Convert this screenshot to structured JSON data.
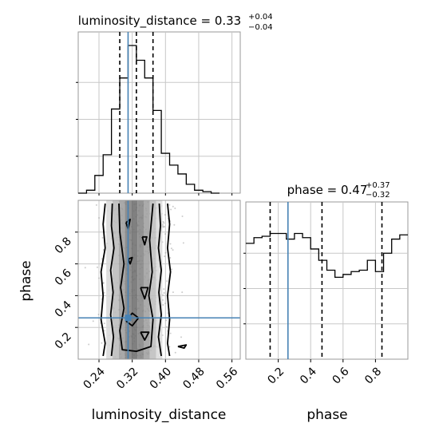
{
  "chart_data": {
    "type": "corner",
    "parameters": [
      "luminosity_distance",
      "phase"
    ],
    "truth": {
      "luminosity_distance": 0.31,
      "phase": 0.26
    },
    "line_color": "#000000",
    "truth_color": "#4682b4",
    "grid": true,
    "panels": [
      {
        "id": "hist-luminosity-distance",
        "type": "histogram",
        "title": {
          "label": "luminosity_distance",
          "value": "0.33",
          "plus": "+0.04",
          "minus": "−0.04"
        },
        "xlim": [
          0.19,
          0.58
        ],
        "quantiles": [
          0.29,
          0.33,
          0.37
        ],
        "bins": [
          {
            "x0": 0.19,
            "x1": 0.21,
            "h": 0.0
          },
          {
            "x0": 0.21,
            "x1": 0.23,
            "h": 0.02
          },
          {
            "x0": 0.23,
            "x1": 0.25,
            "h": 0.12
          },
          {
            "x0": 0.25,
            "x1": 0.27,
            "h": 0.26
          },
          {
            "x0": 0.27,
            "x1": 0.29,
            "h": 0.57
          },
          {
            "x0": 0.29,
            "x1": 0.31,
            "h": 0.78
          },
          {
            "x0": 0.31,
            "x1": 0.33,
            "h": 1.0
          },
          {
            "x0": 0.33,
            "x1": 0.35,
            "h": 0.9
          },
          {
            "x0": 0.35,
            "x1": 0.37,
            "h": 0.78
          },
          {
            "x0": 0.37,
            "x1": 0.39,
            "h": 0.56
          },
          {
            "x0": 0.39,
            "x1": 0.41,
            "h": 0.27
          },
          {
            "x0": 0.41,
            "x1": 0.43,
            "h": 0.19
          },
          {
            "x0": 0.43,
            "x1": 0.45,
            "h": 0.13
          },
          {
            "x0": 0.45,
            "x1": 0.47,
            "h": 0.06
          },
          {
            "x0": 0.47,
            "x1": 0.49,
            "h": 0.02
          },
          {
            "x0": 0.49,
            "x1": 0.51,
            "h": 0.01
          },
          {
            "x0": 0.51,
            "x1": 0.53,
            "h": 0.0
          }
        ]
      },
      {
        "id": "hist-phase",
        "type": "histogram",
        "title": {
          "label": "phase",
          "value": "0.47",
          "plus": "+0.37",
          "minus": "−0.32"
        },
        "xlim": [
          0.0,
          1.0
        ],
        "quantiles": [
          0.15,
          0.47,
          0.84
        ],
        "bins": [
          {
            "x0": 0.0,
            "x1": 0.05,
            "h": 0.82
          },
          {
            "x0": 0.05,
            "x1": 0.1,
            "h": 0.86
          },
          {
            "x0": 0.1,
            "x1": 0.15,
            "h": 0.87
          },
          {
            "x0": 0.15,
            "x1": 0.2,
            "h": 0.89
          },
          {
            "x0": 0.2,
            "x1": 0.25,
            "h": 0.89
          },
          {
            "x0": 0.25,
            "x1": 0.3,
            "h": 0.85
          },
          {
            "x0": 0.3,
            "x1": 0.35,
            "h": 0.89
          },
          {
            "x0": 0.35,
            "x1": 0.4,
            "h": 0.86
          },
          {
            "x0": 0.4,
            "x1": 0.45,
            "h": 0.78
          },
          {
            "x0": 0.45,
            "x1": 0.5,
            "h": 0.7
          },
          {
            "x0": 0.5,
            "x1": 0.55,
            "h": 0.63
          },
          {
            "x0": 0.55,
            "x1": 0.6,
            "h": 0.58
          },
          {
            "x0": 0.6,
            "x1": 0.65,
            "h": 0.6
          },
          {
            "x0": 0.65,
            "x1": 0.7,
            "h": 0.62
          },
          {
            "x0": 0.7,
            "x1": 0.75,
            "h": 0.63
          },
          {
            "x0": 0.75,
            "x1": 0.8,
            "h": 0.7
          },
          {
            "x0": 0.8,
            "x1": 0.85,
            "h": 0.62
          },
          {
            "x0": 0.85,
            "x1": 0.9,
            "h": 0.75
          },
          {
            "x0": 0.9,
            "x1": 0.95,
            "h": 0.85
          },
          {
            "x0": 0.95,
            "x1": 1.0,
            "h": 0.88
          }
        ]
      },
      {
        "id": "joint-luminosity-distance-phase",
        "type": "2d-density",
        "xlim": [
          0.19,
          0.58
        ],
        "ylim": [
          0.0,
          1.0
        ],
        "xlabel": "luminosity_distance",
        "ylabel": "phase",
        "xticks": [
          "0.24",
          "0.32",
          "0.40",
          "0.48",
          "0.56"
        ],
        "yticks": [
          "0.2",
          "0.4",
          "0.6",
          "0.8"
        ],
        "density_columns": [
          {
            "x": 0.265,
            "shade": "#d8d8d8"
          },
          {
            "x": 0.28,
            "shade": "#b8b8b8"
          },
          {
            "x": 0.295,
            "shade": "#9a9a9a"
          },
          {
            "x": 0.31,
            "shade": "#7a7a7a"
          },
          {
            "x": 0.325,
            "shade": "#6a6a6a"
          },
          {
            "x": 0.34,
            "shade": "#808080"
          },
          {
            "x": 0.355,
            "shade": "#9c9c9c"
          },
          {
            "x": 0.37,
            "shade": "#bcbcbc"
          },
          {
            "x": 0.385,
            "shade": "#d9d9d9"
          }
        ],
        "contours": [
          [
            [
              0.255,
              0.98
            ],
            [
              0.25,
              0.85
            ],
            [
              0.255,
              0.7
            ],
            [
              0.245,
              0.55
            ],
            [
              0.25,
              0.4
            ],
            [
              0.245,
              0.25
            ],
            [
              0.255,
              0.1
            ],
            [
              0.25,
              0.02
            ]
          ],
          [
            [
              0.405,
              0.98
            ],
            [
              0.41,
              0.85
            ],
            [
              0.405,
              0.7
            ],
            [
              0.412,
              0.55
            ],
            [
              0.405,
              0.4
            ],
            [
              0.41,
              0.25
            ],
            [
              0.405,
              0.1
            ],
            [
              0.41,
              0.02
            ]
          ],
          [
            [
              0.272,
              0.98
            ],
            [
              0.27,
              0.84
            ],
            [
              0.276,
              0.7
            ],
            [
              0.268,
              0.56
            ],
            [
              0.274,
              0.42
            ],
            [
              0.268,
              0.28
            ],
            [
              0.275,
              0.14
            ],
            [
              0.27,
              0.02
            ]
          ],
          [
            [
              0.385,
              0.98
            ],
            [
              0.388,
              0.84
            ],
            [
              0.383,
              0.7
            ],
            [
              0.39,
              0.56
            ],
            [
              0.384,
              0.42
            ],
            [
              0.39,
              0.28
            ],
            [
              0.383,
              0.14
            ],
            [
              0.39,
              0.02
            ]
          ],
          [
            [
              0.288,
              0.98
            ],
            [
              0.29,
              0.8
            ],
            [
              0.3,
              0.6
            ],
            [
              0.292,
              0.45
            ],
            [
              0.3,
              0.32
            ],
            [
              0.29,
              0.18
            ],
            [
              0.296,
              0.06
            ],
            [
              0.33,
              0.05
            ],
            [
              0.365,
              0.08
            ],
            [
              0.37,
              0.25
            ],
            [
              0.36,
              0.4
            ],
            [
              0.368,
              0.55
            ],
            [
              0.362,
              0.75
            ],
            [
              0.37,
              0.98
            ]
          ],
          [
            [
              0.305,
              0.86
            ],
            [
              0.31,
              0.82
            ],
            [
              0.315,
              0.88
            ],
            [
              0.305,
              0.86
            ]
          ],
          [
            [
              0.344,
              0.77
            ],
            [
              0.35,
              0.72
            ],
            [
              0.355,
              0.77
            ],
            [
              0.344,
              0.77
            ]
          ],
          [
            [
              0.31,
              0.63
            ],
            [
              0.315,
              0.6
            ],
            [
              0.32,
              0.64
            ],
            [
              0.31,
              0.63
            ]
          ],
          [
            [
              0.34,
              0.45
            ],
            [
              0.35,
              0.38
            ],
            [
              0.358,
              0.45
            ],
            [
              0.34,
              0.45
            ]
          ],
          [
            [
              0.305,
              0.24
            ],
            [
              0.32,
              0.21
            ],
            [
              0.335,
              0.26
            ],
            [
              0.32,
              0.29
            ],
            [
              0.305,
              0.24
            ]
          ],
          [
            [
              0.34,
              0.17
            ],
            [
              0.35,
              0.12
            ],
            [
              0.36,
              0.17
            ],
            [
              0.34,
              0.17
            ]
          ],
          [
            [
              0.43,
              0.08
            ],
            [
              0.445,
              0.07
            ],
            [
              0.45,
              0.09
            ],
            [
              0.43,
              0.08
            ]
          ]
        ]
      }
    ],
    "phase_axis": {
      "xlabel": "phase",
      "xticks": [
        "0.2",
        "0.4",
        "0.6",
        "0.8"
      ]
    }
  }
}
